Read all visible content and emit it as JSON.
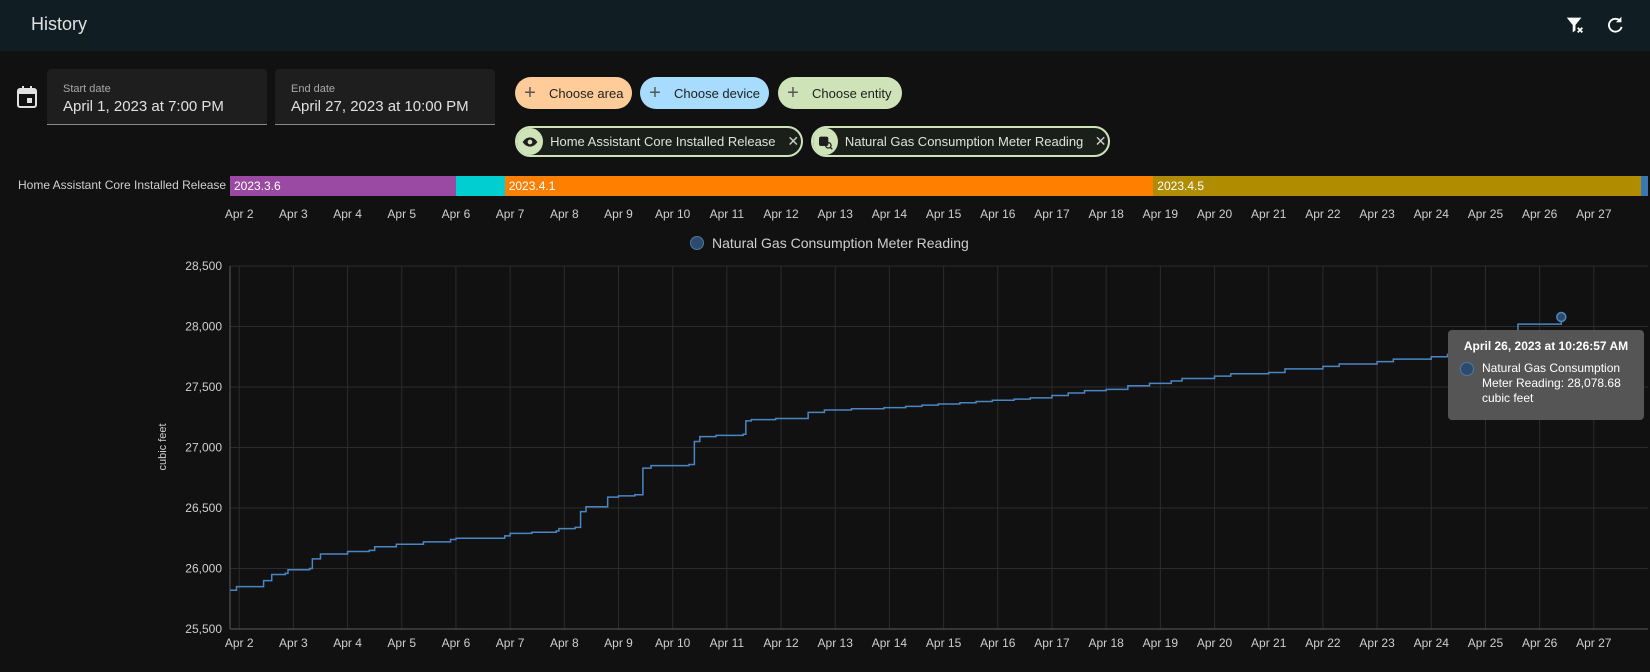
{
  "header": {
    "title": "History",
    "clear_filter_icon": "filter-remove-icon",
    "refresh_icon": "refresh-icon"
  },
  "date_range": {
    "calendar_icon": "calendar-icon",
    "start": {
      "label": "Start date",
      "value": "April 1, 2023 at 7:00 PM"
    },
    "end": {
      "label": "End date",
      "value": "April 27, 2023 at 10:00 PM"
    }
  },
  "pickers": {
    "area": "Choose area",
    "device": "Choose device",
    "entity": "Choose entity",
    "colors": {
      "area": "#ffcc99",
      "device": "#a8dcff",
      "entity": "#cfe3b8"
    }
  },
  "selected": [
    {
      "label": "Home Assistant Core Installed Release",
      "icon": "eye-icon"
    },
    {
      "label": "Natural Gas Consumption Meter Reading",
      "icon": "gas-meter-icon"
    }
  ],
  "timeline": {
    "entity": "Home Assistant Core Installed Release",
    "segments": [
      {
        "label": "2023.3.6",
        "start": 1.83,
        "end": 6.0,
        "color": "#9b4aa3"
      },
      {
        "label": "",
        "start": 6.0,
        "end": 6.9,
        "color": "#00ced1"
      },
      {
        "label": "2023.4.1",
        "start": 6.9,
        "end": 18.87,
        "color": "#ff8000"
      },
      {
        "label": "2023.4.5",
        "start": 18.87,
        "end": 27.88,
        "color": "#b08c00"
      },
      {
        "label": "",
        "start": 27.88,
        "end": 28.0,
        "color": "#3a78b4"
      }
    ]
  },
  "chart_data": {
    "type": "line",
    "legend": "Natural Gas Consumption Meter Reading",
    "ylabel": "cubic feet",
    "xlim": [
      1.83,
      28.0
    ],
    "ylim": [
      25500,
      28500
    ],
    "y_ticks": [
      "25,500",
      "26,000",
      "26,500",
      "27,000",
      "27,500",
      "28,000",
      "28,500"
    ],
    "y_tick_values": [
      25500,
      26000,
      26500,
      27000,
      27500,
      28000,
      28500
    ],
    "x_ticks": [
      "Apr 2",
      "Apr 3",
      "Apr 4",
      "Apr 5",
      "Apr 6",
      "Apr 7",
      "Apr 8",
      "Apr 9",
      "Apr 10",
      "Apr 11",
      "Apr 12",
      "Apr 13",
      "Apr 14",
      "Apr 15",
      "Apr 16",
      "Apr 17",
      "Apr 18",
      "Apr 19",
      "Apr 20",
      "Apr 21",
      "Apr 22",
      "Apr 23",
      "Apr 24",
      "Apr 25",
      "Apr 26",
      "Apr 27"
    ],
    "x_tick_values": [
      2,
      3,
      4,
      5,
      6,
      7,
      8,
      9,
      10,
      11,
      12,
      13,
      14,
      15,
      16,
      17,
      18,
      19,
      20,
      21,
      22,
      23,
      24,
      25,
      26,
      27
    ],
    "series": [
      {
        "name": "Natural Gas Consumption Meter Reading",
        "color": "#4a86c2",
        "x": [
          1.83,
          1.9,
          1.95,
          2.35,
          2.45,
          2.6,
          2.85,
          2.9,
          3.3,
          3.35,
          3.5,
          3.9,
          4.0,
          4.4,
          4.5,
          4.9,
          5.4,
          5.9,
          6.0,
          6.9,
          7.0,
          7.4,
          7.85,
          7.9,
          8.2,
          8.3,
          8.4,
          8.8,
          9.0,
          9.3,
          9.45,
          9.6,
          9.9,
          10.3,
          10.4,
          10.5,
          10.8,
          11.3,
          11.35,
          11.45,
          11.9,
          12.3,
          12.5,
          12.8,
          13.3,
          13.6,
          13.9,
          14.3,
          14.6,
          14.9,
          15.3,
          15.6,
          15.9,
          16.3,
          16.6,
          17.0,
          17.3,
          17.6,
          18.0,
          18.4,
          18.8,
          19.2,
          19.4,
          20.0,
          20.3,
          21.0,
          21.3,
          22.0,
          22.3,
          23.0,
          23.3,
          24.0,
          24.3,
          24.8,
          25.0,
          25.4,
          25.6,
          26.4
        ],
        "y": [
          25820,
          25820,
          25850,
          25850,
          25900,
          25950,
          25960,
          25990,
          26000,
          26080,
          26120,
          26120,
          26140,
          26150,
          26180,
          26200,
          26220,
          26240,
          26250,
          26270,
          26290,
          26300,
          26310,
          26330,
          26340,
          26470,
          26510,
          26590,
          26600,
          26610,
          26830,
          26850,
          26850,
          26860,
          27050,
          27090,
          27100,
          27110,
          27220,
          27230,
          27240,
          27240,
          27290,
          27310,
          27320,
          27320,
          27330,
          27340,
          27350,
          27360,
          27370,
          27380,
          27390,
          27400,
          27410,
          27430,
          27450,
          27470,
          27480,
          27510,
          27530,
          27550,
          27570,
          27590,
          27610,
          27620,
          27650,
          27670,
          27690,
          27710,
          27730,
          27750,
          27770,
          27790,
          27810,
          27850,
          28020,
          28078.68
        ]
      }
    ],
    "tooltip": {
      "title": "April 26, 2023 at 10:26:57 AM",
      "text": "Natural Gas Consumption Meter Reading: 28,078.68 cubic feet"
    }
  }
}
